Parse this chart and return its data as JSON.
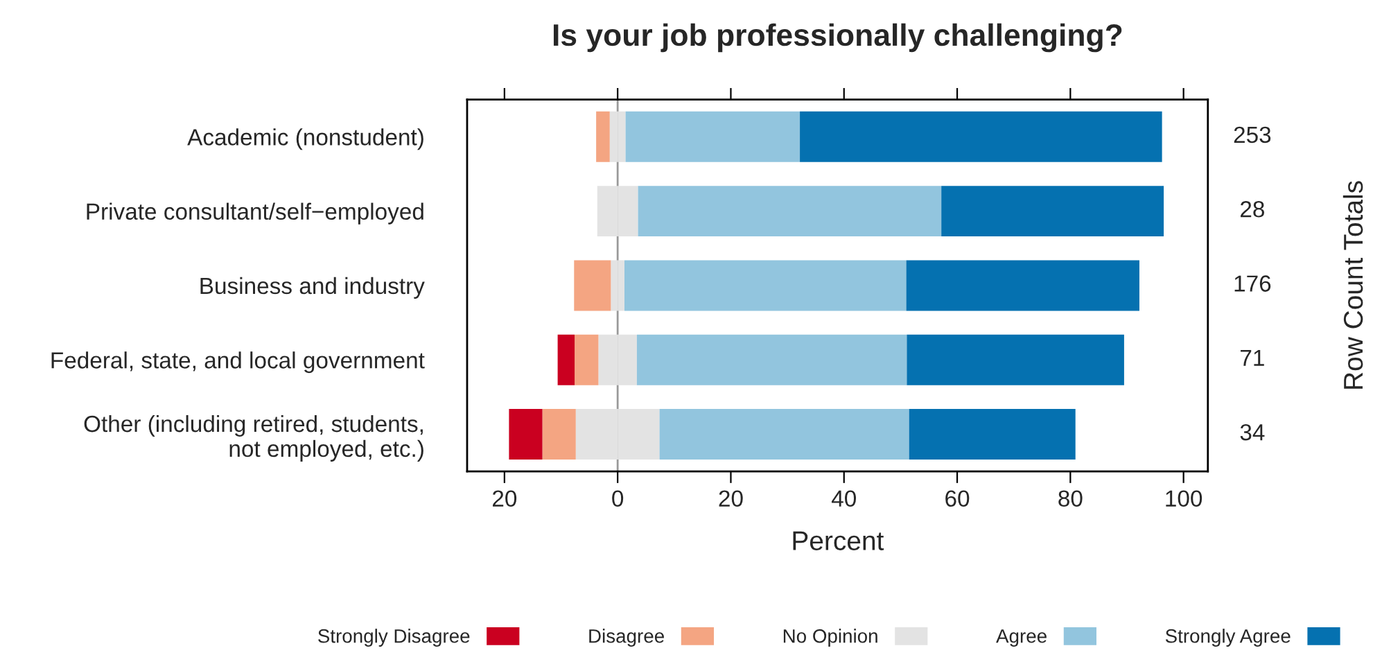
{
  "chart_data": {
    "type": "bar",
    "orientation": "horizontal",
    "stacked": true,
    "title": "Is your job professionally challenging?",
    "xlabel": "Percent",
    "categories": [
      "Academic (nonstudent)",
      "Private consultant/self−employed",
      "Business and industry",
      "Federal, state, and local government",
      "Other (including retired, students,\nnot employed, etc.)"
    ],
    "series": [
      {
        "color": "#e3e3e3",
        "values": [
          -1.4,
          -3.6,
          -1.2,
          -3.4,
          -7.4
        ]
      },
      {
        "name": "Disagree",
        "color": "#f4a582",
        "values": [
          -2.4,
          0,
          -6.5,
          -4.2,
          -5.9
        ]
      },
      {
        "name": "Strongly Disagree",
        "color": "#ca0020",
        "values": [
          0,
          0,
          0,
          -3.0,
          -5.9
        ]
      },
      {
        "name": "No Opinion",
        "color": "#e3e3e3",
        "values": [
          1.4,
          3.6,
          1.2,
          3.4,
          7.4
        ]
      },
      {
        "name": "Agree",
        "color": "#92c5de",
        "values": [
          30.8,
          53.6,
          49.8,
          47.7,
          44.1
        ]
      },
      {
        "name": "Strongly Agree",
        "color": "#0571b0",
        "values": [
          64.0,
          39.3,
          41.2,
          38.4,
          29.4
        ]
      }
    ],
    "annotations": [
      "Row Count Totals",
      "253",
      "28",
      "176",
      "71",
      "34"
    ],
    "xlim": [
      -26.6,
      104.3
    ],
    "xticks": [
      {
        "value": -20,
        "label": "20"
      },
      0,
      20,
      40,
      60,
      80,
      100
    ],
    "ref_lines": [
      {
        "axis": "x",
        "value": 0,
        "color": "#999999"
      }
    ],
    "grid": false,
    "legend": "bottom"
  }
}
